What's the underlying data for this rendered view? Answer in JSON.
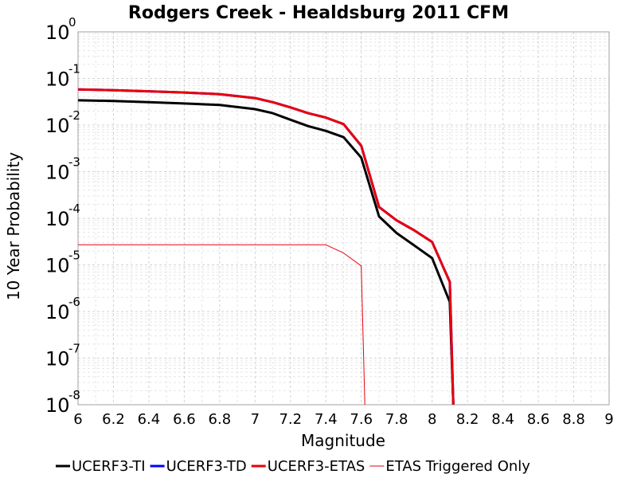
{
  "chart_data": {
    "type": "line",
    "title": "Rodgers Creek - Healdsburg 2011 CFM",
    "xlabel": "Magnitude",
    "ylabel": "10 Year Probability",
    "xlim": [
      6,
      9
    ],
    "ylim": [
      1e-08,
      1
    ],
    "yscale": "log",
    "grid": true,
    "legend_position": "bottom",
    "x_ticks": [
      "6",
      "6.2",
      "6.4",
      "6.6",
      "6.8",
      "7",
      "7.2",
      "7.4",
      "7.6",
      "7.8",
      "8",
      "8.2",
      "8.4",
      "8.6",
      "8.8",
      "9"
    ],
    "y_ticks": [
      {
        "value": 1,
        "base": "10",
        "exp": "0"
      },
      {
        "value": 0.1,
        "base": "10",
        "exp": "-1"
      },
      {
        "value": 0.01,
        "base": "10",
        "exp": "-2"
      },
      {
        "value": 0.001,
        "base": "10",
        "exp": "-3"
      },
      {
        "value": 0.0001,
        "base": "10",
        "exp": "-4"
      },
      {
        "value": 1e-05,
        "base": "10",
        "exp": "-5"
      },
      {
        "value": 1e-06,
        "base": "10",
        "exp": "-6"
      },
      {
        "value": 1e-07,
        "base": "10",
        "exp": "-7"
      },
      {
        "value": 1e-08,
        "base": "10",
        "exp": "-8"
      }
    ],
    "series": [
      {
        "name": "UCERF3-TI",
        "color": "#000000",
        "width": 3,
        "x": [
          6.0,
          6.2,
          6.4,
          6.6,
          6.8,
          7.0,
          7.1,
          7.2,
          7.3,
          7.4,
          7.5,
          7.6,
          7.7,
          7.8,
          7.9,
          8.0,
          8.1,
          8.12
        ],
        "y": [
          0.034,
          0.033,
          0.031,
          0.029,
          0.027,
          0.022,
          0.018,
          0.013,
          0.0095,
          0.0075,
          0.0055,
          0.002,
          0.00011,
          4.8e-05,
          2.6e-05,
          1.4e-05,
          1.6e-06,
          1e-08
        ]
      },
      {
        "name": "UCERF3-TD",
        "color": "#0000ff",
        "width": 3,
        "x": [
          6.0,
          6.2,
          6.4,
          6.6,
          6.8,
          7.0,
          7.1,
          7.2,
          7.3,
          7.4,
          7.5,
          7.6,
          7.7,
          7.8,
          7.9,
          8.0,
          8.1,
          8.12
        ],
        "y": [
          0.058,
          0.056,
          0.053,
          0.05,
          0.046,
          0.038,
          0.031,
          0.024,
          0.018,
          0.0145,
          0.0105,
          0.0036,
          0.000175,
          9e-05,
          5.5e-05,
          3.1e-05,
          4.3e-06,
          1e-08
        ]
      },
      {
        "name": "UCERF3-ETAS",
        "color": "#e8000b",
        "width": 3,
        "x": [
          6.0,
          6.2,
          6.4,
          6.6,
          6.8,
          7.0,
          7.1,
          7.2,
          7.3,
          7.4,
          7.5,
          7.6,
          7.7,
          7.8,
          7.9,
          8.0,
          8.1,
          8.12
        ],
        "y": [
          0.058,
          0.056,
          0.053,
          0.05,
          0.046,
          0.038,
          0.031,
          0.024,
          0.018,
          0.0145,
          0.0105,
          0.0036,
          0.000175,
          9e-05,
          5.5e-05,
          3.1e-05,
          4.3e-06,
          1e-08
        ]
      },
      {
        "name": "ETAS Triggered Only",
        "color": "#e8000b",
        "width": 1,
        "x": [
          6.0,
          6.2,
          6.4,
          6.6,
          6.8,
          7.0,
          7.2,
          7.4,
          7.5,
          7.6,
          7.62
        ],
        "y": [
          2.7e-05,
          2.7e-05,
          2.7e-05,
          2.7e-05,
          2.7e-05,
          2.7e-05,
          2.7e-05,
          2.7e-05,
          1.8e-05,
          9.5e-06,
          1e-08
        ]
      }
    ]
  }
}
